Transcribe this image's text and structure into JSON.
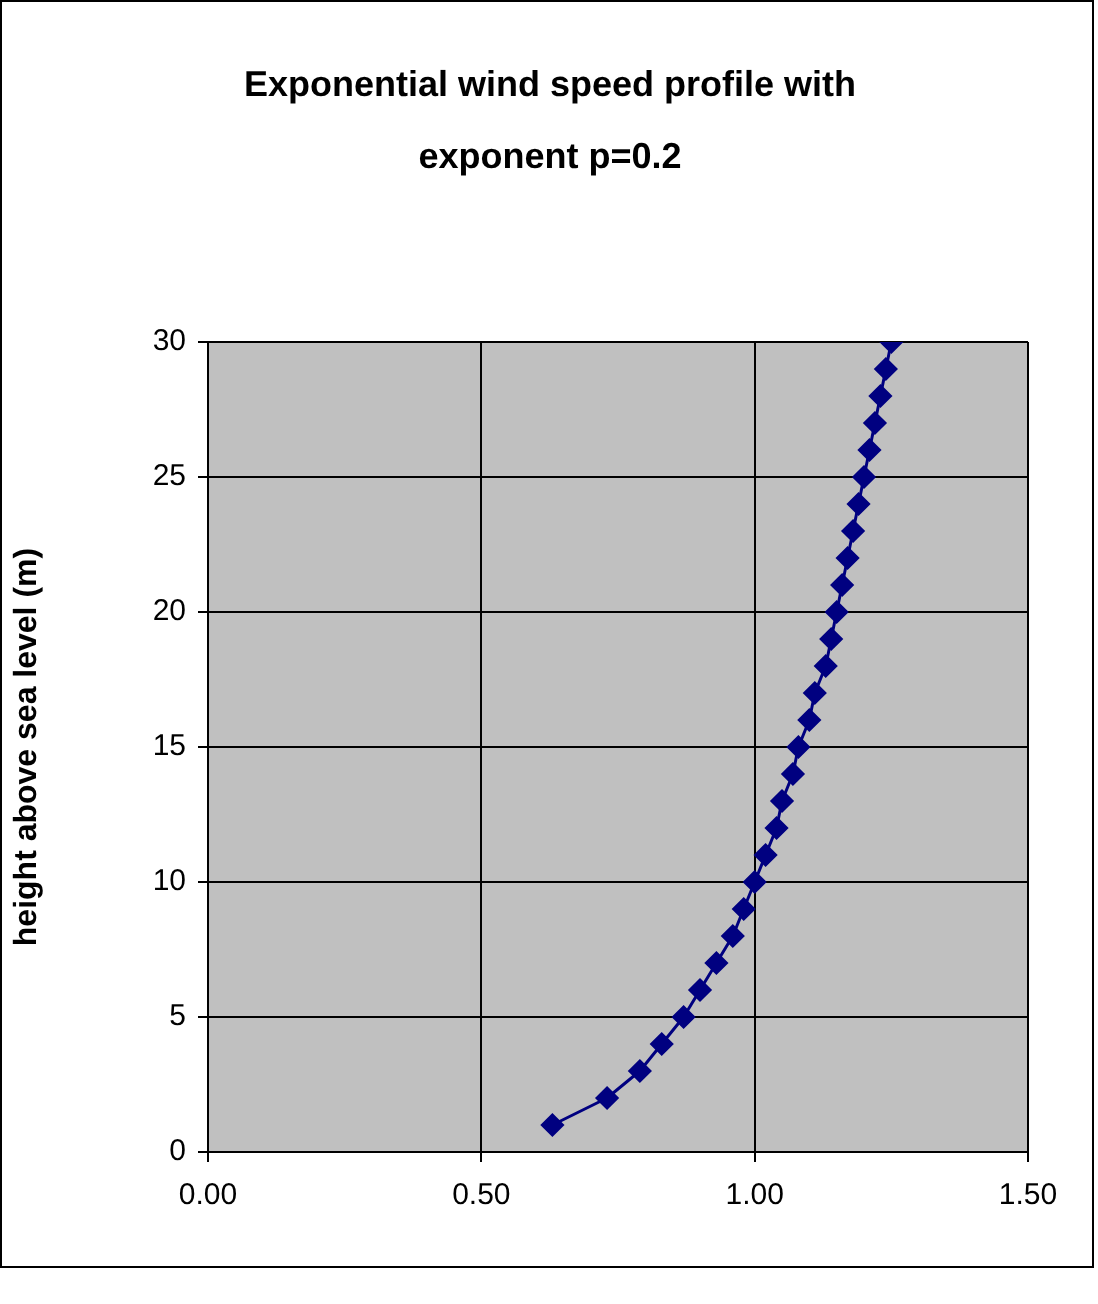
{
  "chart_data": {
    "type": "line",
    "title": "Exponential wind speed profile with exponent p=0.2",
    "ylabel": "height above sea level (m)",
    "x": [
      0.63,
      0.73,
      0.79,
      0.83,
      0.87,
      0.9,
      0.93,
      0.96,
      0.98,
      1.0,
      1.02,
      1.04,
      1.05,
      1.07,
      1.08,
      1.1,
      1.11,
      1.13,
      1.14,
      1.15,
      1.16,
      1.17,
      1.18,
      1.19,
      1.2,
      1.21,
      1.22,
      1.23,
      1.24,
      1.25
    ],
    "series": [
      {
        "color": "#000080",
        "values": [
          1,
          2,
          3,
          4,
          5,
          6,
          7,
          8,
          9,
          10,
          11,
          12,
          13,
          14,
          15,
          16,
          17,
          18,
          19,
          20,
          21,
          22,
          23,
          24,
          25,
          26,
          27,
          28,
          29,
          30
        ]
      }
    ],
    "xlim": [
      0,
      1.5
    ],
    "xticks": [
      {
        "value": 0,
        "label": "0.00"
      },
      {
        "value": 0.5,
        "label": "0.50"
      },
      {
        "value": 1,
        "label": "1.00"
      },
      {
        "value": 1.5,
        "label": "1.50"
      }
    ],
    "ylim": [
      0,
      30
    ],
    "yticks": [
      0,
      5,
      10,
      15,
      20,
      25,
      30
    ],
    "grid": true,
    "legend": false,
    "marker": "diamond",
    "line_style": "solid"
  }
}
